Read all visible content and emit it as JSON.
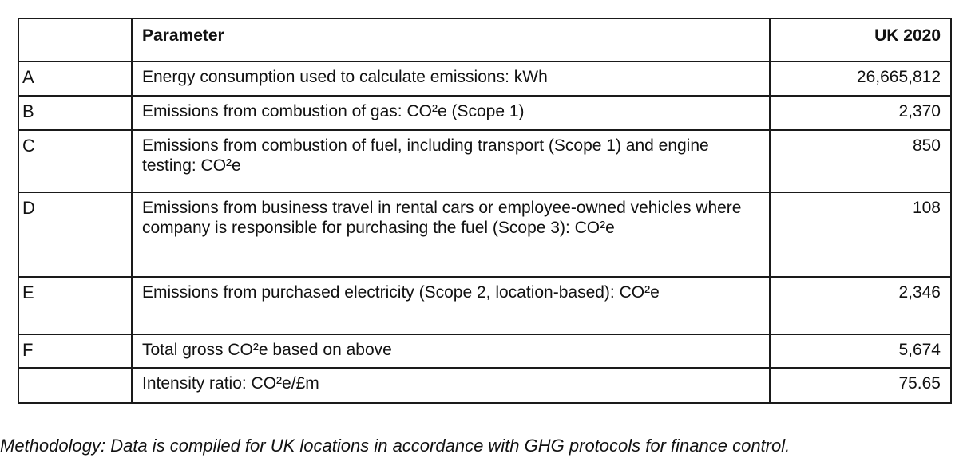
{
  "table": {
    "headers": {
      "id": "",
      "parameter": "Parameter",
      "value": "UK 2020"
    },
    "rows": [
      {
        "id": "A",
        "parameter": "Energy consumption used to calculate emissions: kWh",
        "value": "26,665,812"
      },
      {
        "id": "B",
        "parameter": "Emissions from combustion of gas: CO²e (Scope 1)",
        "value": "2,370"
      },
      {
        "id": "C",
        "parameter": "Emissions from combustion of fuel, including transport (Scope 1) and engine testing: CO²e",
        "value": "850"
      },
      {
        "id": "D",
        "parameter": "Emissions from business travel in rental cars or employee-owned vehicles where company is responsible for purchasing the fuel (Scope 3): CO²e",
        "value": "108"
      },
      {
        "id": "E",
        "parameter": "Emissions from purchased electricity (Scope 2, location-based): CO²e",
        "value": "2,346"
      },
      {
        "id": "F",
        "parameter": "Total gross CO²e based on above",
        "value": "5,674"
      },
      {
        "id": "",
        "parameter": "Intensity ratio: CO²e/£m",
        "value": "75.65"
      }
    ]
  },
  "note": "Methodology: Data is compiled for UK locations in accordance with GHG protocols for finance control."
}
